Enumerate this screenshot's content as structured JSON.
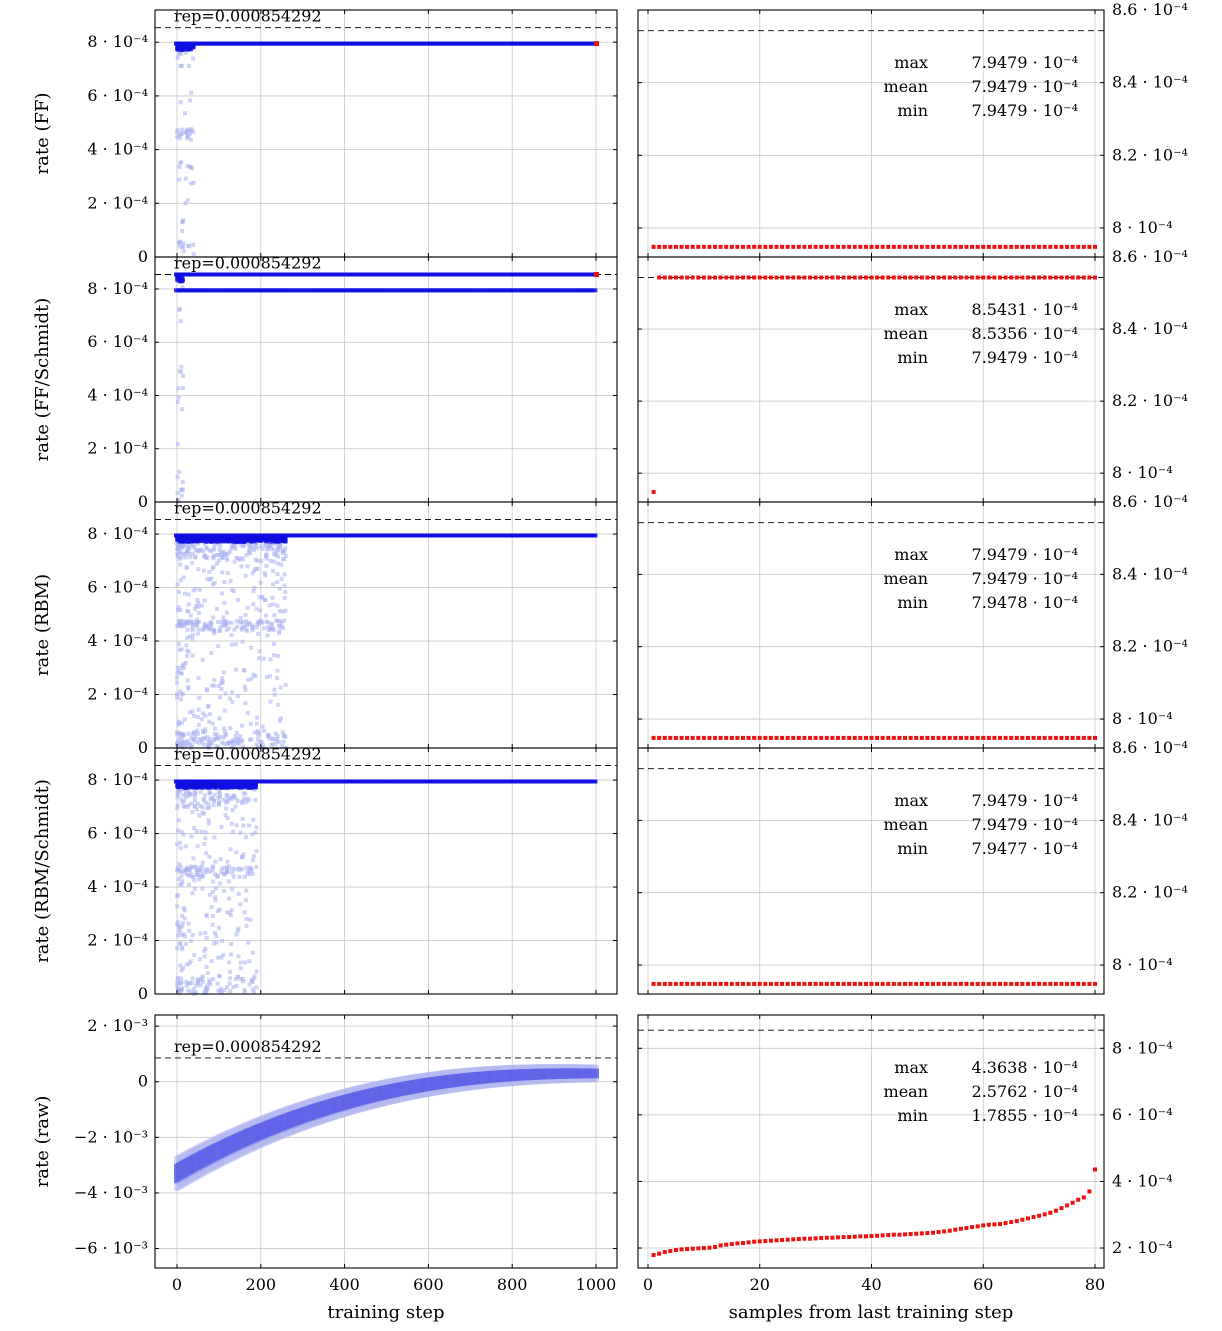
{
  "shared": {
    "left_xlabel": "training step",
    "right_xlabel": "samples from last training step",
    "left_xticks": [
      "0",
      "200",
      "400",
      "600",
      "800",
      "1000"
    ],
    "right_xticks": [
      "0",
      "20",
      "40",
      "60",
      "80"
    ],
    "rep_label": "rep=0.000854292",
    "rep_value": 0.000854292,
    "stat_labels": [
      "max",
      "mean",
      "min"
    ],
    "colors": {
      "training": "#1010e0",
      "training_faint": "#aab0ee",
      "samples": "#ee1111",
      "grid": "#c8c8c8"
    }
  },
  "chart_data": [
    {
      "type": "scatter",
      "ylabel": "rate (FF)",
      "left_yticks": [
        "0",
        "2 · 10⁻⁴",
        "4 · 10⁻⁴",
        "6 · 10⁻⁴",
        "8 · 10⁻⁴"
      ],
      "left_ylim": [
        0,
        0.00092
      ],
      "right_yticks": [
        "8 · 10⁻⁴",
        "8.2 · 10⁻⁴",
        "8.4 · 10⁻⁴",
        "8.6 · 10⁻⁴"
      ],
      "right_ylim": [
        0.000792,
        0.00086
      ],
      "converged_value": 0.00079479,
      "second_line_value": null,
      "samples": {
        "value": 0.00079479,
        "count": 80,
        "outlier": null
      },
      "stats": {
        "max": "7.9479 · 10⁻⁴",
        "mean": "7.9479 · 10⁻⁴",
        "min": "7.9479 · 10⁻⁴"
      }
    },
    {
      "type": "scatter",
      "ylabel": "rate (FF/Schmidt)",
      "left_yticks": [
        "0",
        "2 · 10⁻⁴",
        "4 · 10⁻⁴",
        "6 · 10⁻⁴",
        "8 · 10⁻⁴"
      ],
      "left_ylim": [
        0,
        0.00092
      ],
      "right_yticks": [
        "8 · 10⁻⁴",
        "8.2 · 10⁻⁴",
        "8.4 · 10⁻⁴",
        "8.6 · 10⁻⁴"
      ],
      "right_ylim": [
        0.000792,
        0.00086
      ],
      "converged_value": 0.00085431,
      "second_line_value": 0.00079479,
      "samples": {
        "value": 0.00085431,
        "count": 80,
        "outlier": 0.00079479
      },
      "stats": {
        "max": "8.5431 · 10⁻⁴",
        "mean": "8.5356 · 10⁻⁴",
        "min": "7.9479 · 10⁻⁴"
      }
    },
    {
      "type": "scatter",
      "ylabel": "rate (RBM)",
      "left_yticks": [
        "0",
        "2 · 10⁻⁴",
        "4 · 10⁻⁴",
        "6 · 10⁻⁴",
        "8 · 10⁻⁴"
      ],
      "left_ylim": [
        0,
        0.00092
      ],
      "right_yticks": [
        "8 · 10⁻⁴",
        "8.2 · 10⁻⁴",
        "8.4 · 10⁻⁴",
        "8.6 · 10⁻⁴"
      ],
      "right_ylim": [
        0.000792,
        0.00086
      ],
      "converged_value": 0.00079479,
      "second_line_value": null,
      "samples": {
        "value": 0.00079479,
        "count": 80,
        "outlier": null
      },
      "stats": {
        "max": "7.9479 · 10⁻⁴",
        "mean": "7.9479 · 10⁻⁴",
        "min": "7.9478 · 10⁻⁴"
      }
    },
    {
      "type": "scatter",
      "ylabel": "rate (RBM/Schmidt)",
      "left_yticks": [
        "0",
        "2 · 10⁻⁴",
        "4 · 10⁻⁴",
        "6 · 10⁻⁴",
        "8 · 10⁻⁴"
      ],
      "left_ylim": [
        0,
        0.00092
      ],
      "right_yticks": [
        "8 · 10⁻⁴",
        "8.2 · 10⁻⁴",
        "8.4 · 10⁻⁴",
        "8.6 · 10⁻⁴"
      ],
      "right_ylim": [
        0.000792,
        0.00086
      ],
      "converged_value": 0.00079479,
      "second_line_value": null,
      "samples": {
        "value": 0.00079479,
        "count": 80,
        "outlier": null
      },
      "stats": {
        "max": "7.9479 · 10⁻⁴",
        "mean": "7.9479 · 10⁻⁴",
        "min": "7.9477 · 10⁻⁴"
      }
    },
    {
      "type": "scatter",
      "ylabel": "rate (raw)",
      "left_yticks": [
        "−6 · 10⁻³",
        "−4 · 10⁻³",
        "−2 · 10⁻³",
        "0",
        "2 · 10⁻³"
      ],
      "left_ylim": [
        -0.0067,
        0.0024
      ],
      "right_yticks": [
        "2 · 10⁻⁴",
        "4 · 10⁻⁴",
        "6 · 10⁻⁴",
        "8 · 10⁻⁴"
      ],
      "right_ylim": [
        0.00014,
        0.0009
      ],
      "raw_curve": {
        "start": -0.0033,
        "end": 0.0003
      },
      "samples_sorted": [
        0.000179,
        0.000183,
        0.000188,
        0.000191,
        0.000194,
        0.000196,
        0.000197,
        0.000198,
        0.000199,
        0.0002,
        0.000201,
        0.000203,
        0.000208,
        0.00021,
        0.000212,
        0.000214,
        0.000215,
        0.000217,
        0.000219,
        0.00022,
        0.000221,
        0.000222,
        0.000223,
        0.000224,
        0.000225,
        0.000226,
        0.000227,
        0.000228,
        0.000228,
        0.000229,
        0.00023,
        0.000231,
        0.000231,
        0.000232,
        0.000233,
        0.000233,
        0.000234,
        0.000235,
        0.000235,
        0.000236,
        0.000237,
        0.000238,
        0.000239,
        0.00024,
        0.00024,
        0.000241,
        0.000242,
        0.000243,
        0.000244,
        0.000245,
        0.000246,
        0.000248,
        0.00025,
        0.000252,
        0.000255,
        0.000258,
        0.00026,
        0.000263,
        0.000265,
        0.000268,
        0.00027,
        0.000271,
        0.000272,
        0.000275,
        0.000278,
        0.000281,
        0.000285,
        0.000289,
        0.000293,
        0.000297,
        0.000301,
        0.000306,
        0.000312,
        0.00032,
        0.000328,
        0.000336,
        0.000345,
        0.000352,
        0.00037,
        0.000436
      ],
      "stats": {
        "max": "4.3638 · 10⁻⁴",
        "mean": "2.5762 · 10⁻⁴",
        "min": "1.7855 · 10⁻⁴"
      }
    }
  ]
}
